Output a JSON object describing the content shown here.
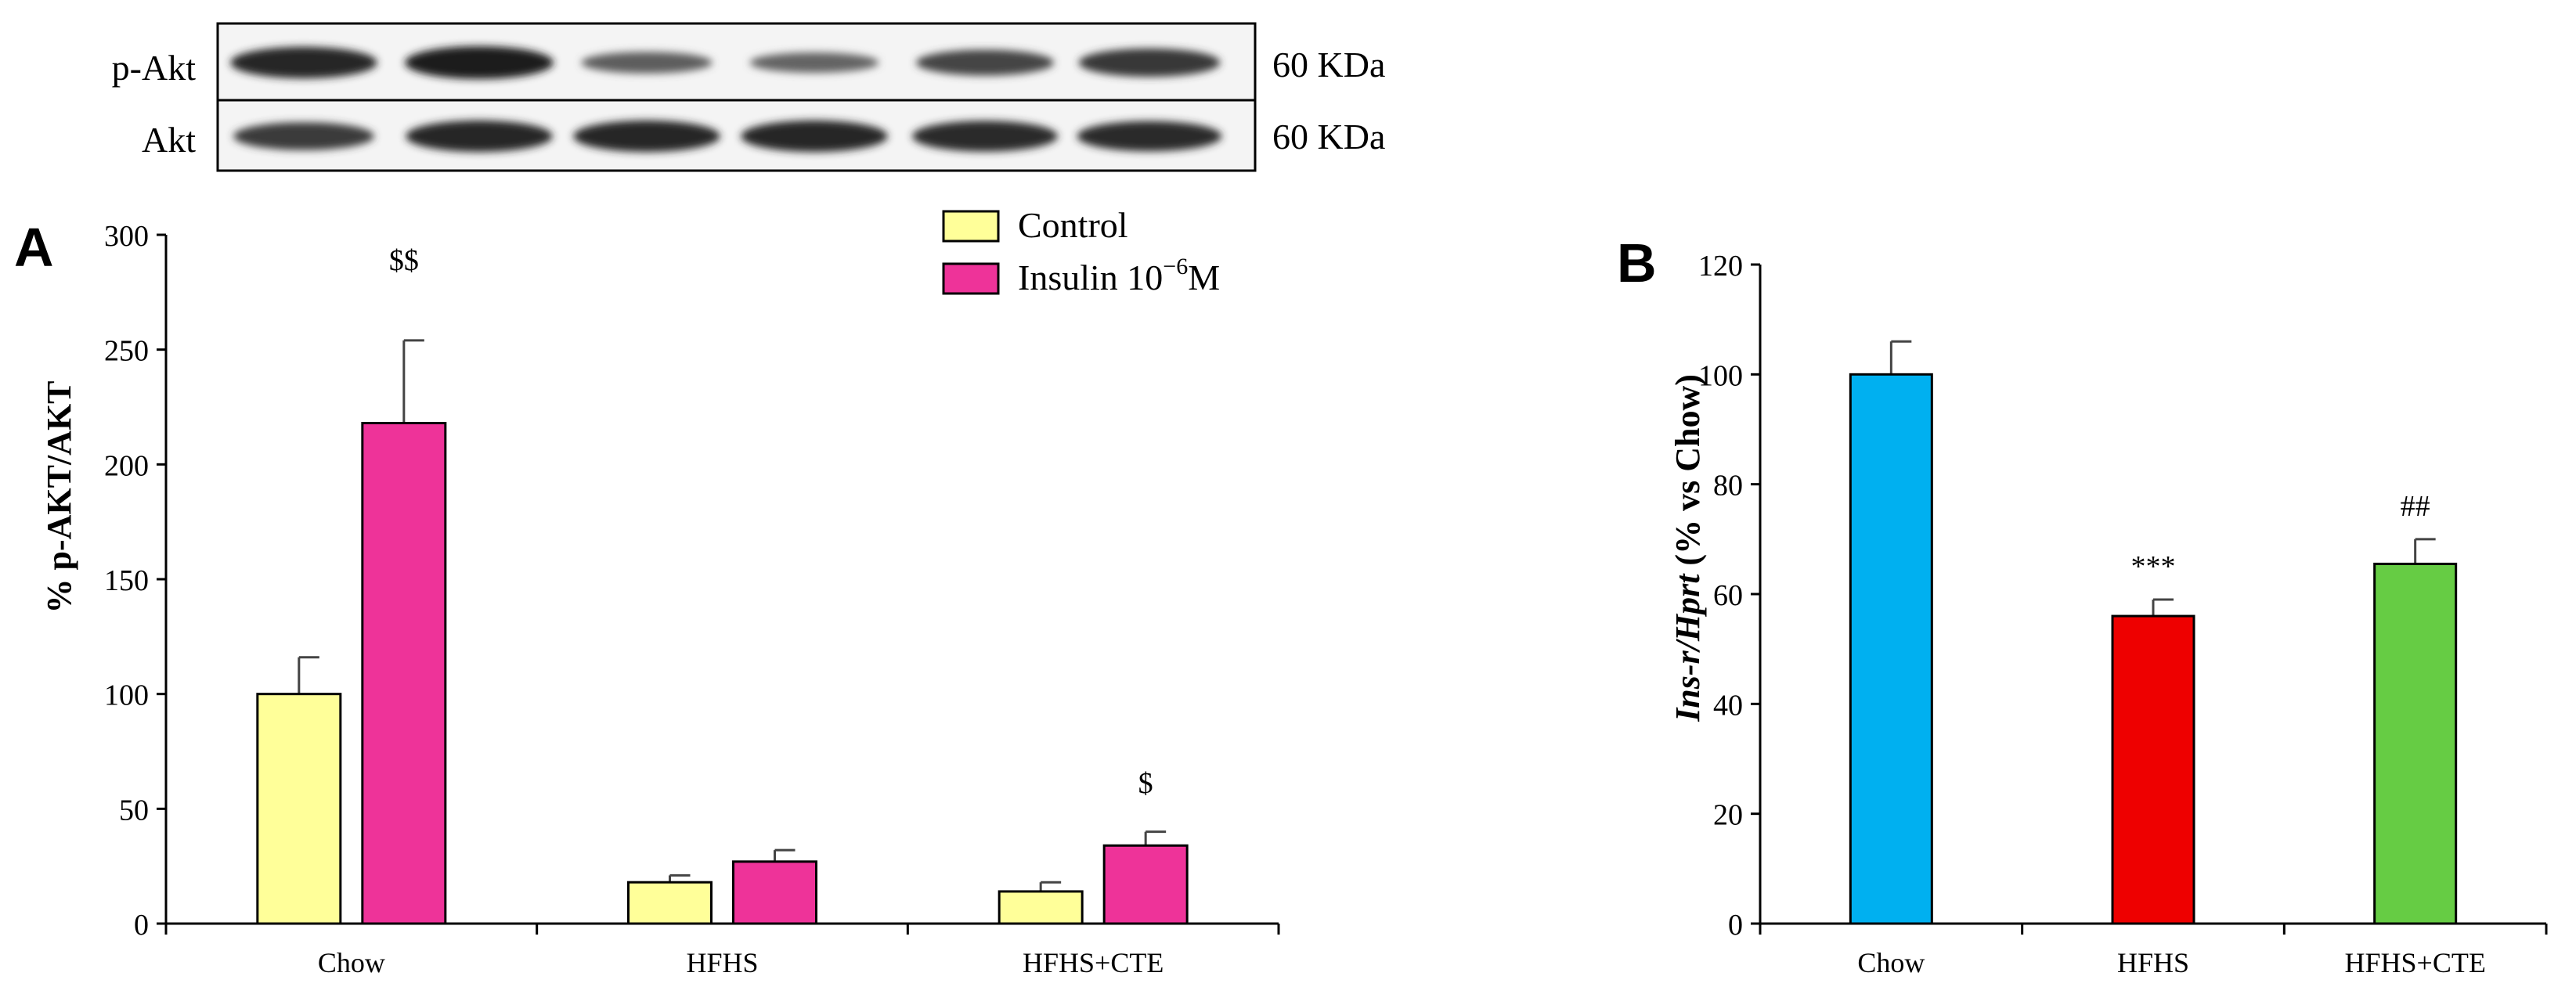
{
  "blot": {
    "rows": [
      {
        "label": "p-Akt",
        "size": "60 KDa",
        "intensities": [
          0.95,
          1.0,
          0.55,
          0.5,
          0.72,
          0.82
        ]
      },
      {
        "label": "Akt",
        "size": "60 KDa",
        "intensities": [
          0.8,
          0.95,
          0.95,
          0.95,
          0.92,
          0.9
        ]
      }
    ]
  },
  "chart_data": [
    {
      "panel": "A",
      "type": "bar",
      "categories": [
        "Chow",
        "HFHS",
        "HFHS+CTE"
      ],
      "series": [
        {
          "name": "Control",
          "color": "#ffff99",
          "values": [
            100,
            18,
            14
          ],
          "errors": [
            16,
            3,
            4
          ]
        },
        {
          "name": "Insulin 10",
          "name_sup": "−6",
          "name_suffix": "M",
          "color": "#ee3399",
          "values": [
            218,
            27,
            34
          ],
          "errors": [
            36,
            5,
            6
          ]
        }
      ],
      "annotations": [
        {
          "text": "$$",
          "category": 0,
          "series": 1
        },
        {
          "text": "$",
          "category": 2,
          "series": 1
        }
      ],
      "ylabel": "% p-AKT/AKT",
      "ylim": [
        0,
        300
      ],
      "yticks": [
        0,
        50,
        100,
        150,
        200,
        250,
        300
      ],
      "legend": "top-right",
      "grid": false
    },
    {
      "panel": "B",
      "type": "bar",
      "categories": [
        "Chow",
        "HFHS",
        "HFHS+CTE"
      ],
      "series": [
        {
          "values": [
            100,
            56,
            65.5
          ],
          "errors": [
            6,
            3,
            4.5
          ],
          "colors": [
            "#00b0f0",
            "#ee0000",
            "#66cc44"
          ]
        }
      ],
      "annotations": [
        {
          "text": "***",
          "category": 1
        },
        {
          "text": "##",
          "category": 2
        }
      ],
      "ylabel_italic": "Ins-r/Hprt",
      "ylabel_rest": " (% vs Chow)",
      "ylim": [
        0,
        120
      ],
      "yticks": [
        0,
        20,
        40,
        60,
        80,
        100,
        120
      ],
      "grid": false
    }
  ]
}
